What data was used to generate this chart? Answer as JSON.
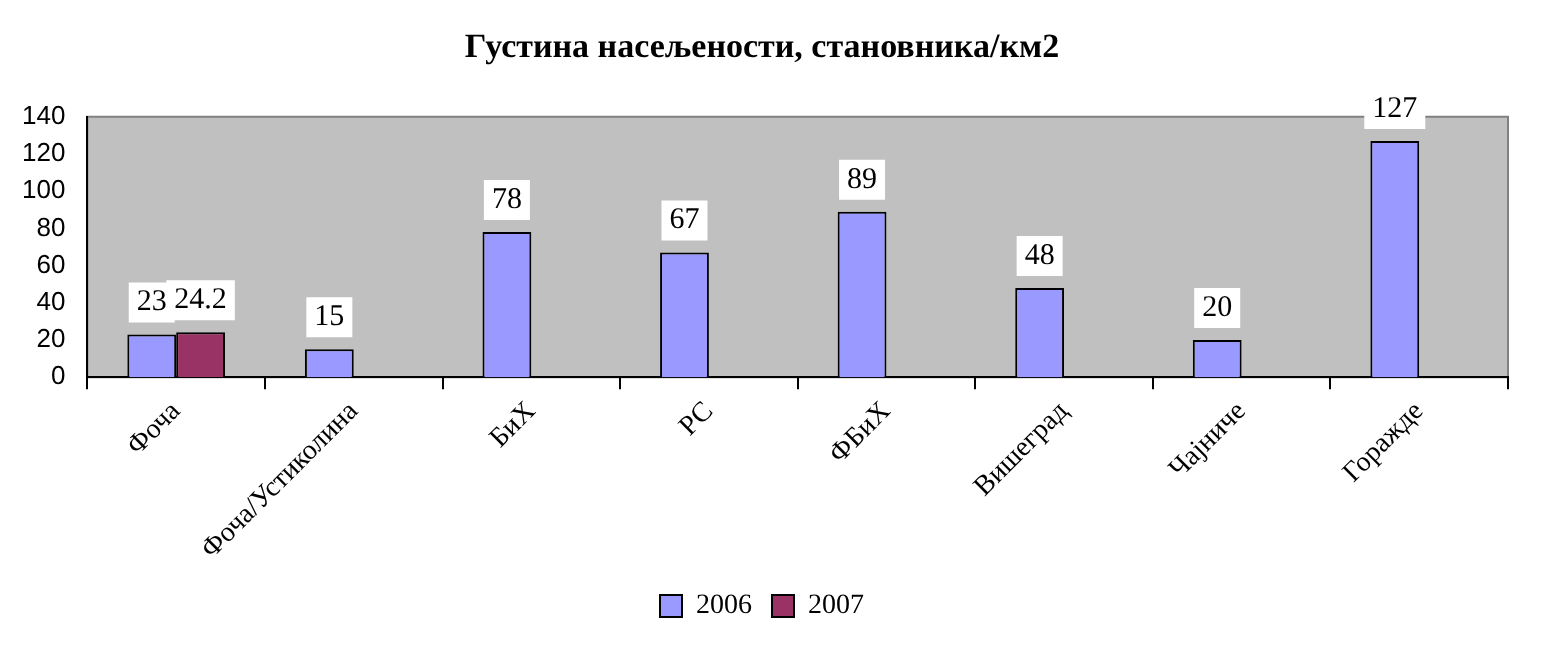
{
  "chart_data": {
    "type": "bar",
    "title": "Густина насељености, становника/км2",
    "categories": [
      "Фоча",
      "Фоча/Устиколина",
      "БиХ",
      "РС",
      "ФБиХ",
      "Вишеград",
      "Чајниче",
      "Горажде"
    ],
    "series": [
      {
        "name": "2006",
        "color": "#9999ff",
        "values": [
          23,
          15,
          78,
          67,
          89,
          48,
          20,
          127
        ]
      },
      {
        "name": "2007",
        "color": "#993366",
        "values": [
          24.2,
          null,
          null,
          null,
          null,
          null,
          null,
          null
        ]
      }
    ],
    "ylim": [
      0,
      140
    ],
    "yticks": [
      0,
      20,
      40,
      60,
      80,
      100,
      120,
      140
    ],
    "grid": false,
    "legend": "bottom",
    "data_labels": true
  }
}
